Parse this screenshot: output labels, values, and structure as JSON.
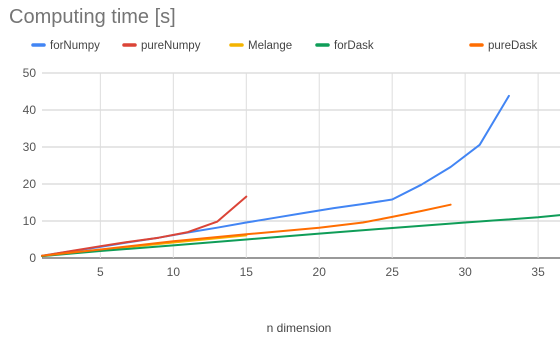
{
  "chart_data": {
    "type": "line",
    "title": "Computing time [s]",
    "xlabel": "n dimension",
    "ylabel": "",
    "xlim": [
      1,
      36.5
    ],
    "ylim": [
      0,
      50
    ],
    "x_ticks": [
      5,
      10,
      15,
      20,
      25,
      30,
      35
    ],
    "y_ticks": [
      0,
      10,
      20,
      30,
      40,
      50
    ],
    "grid": true,
    "legend_position": "top",
    "series": [
      {
        "name": "forNumpy",
        "color": "#4285f4",
        "points": [
          [
            1,
            0.6
          ],
          [
            3,
            1.8
          ],
          [
            5,
            3.0
          ],
          [
            7,
            4.3
          ],
          [
            9,
            5.5
          ],
          [
            11,
            6.9
          ],
          [
            13,
            8.2
          ],
          [
            15,
            9.6
          ],
          [
            17,
            10.9
          ],
          [
            19,
            12.2
          ],
          [
            21,
            13.5
          ],
          [
            23,
            14.6
          ],
          [
            25,
            15.8
          ],
          [
            27,
            19.8
          ],
          [
            29,
            24.6
          ],
          [
            31,
            30.6
          ],
          [
            33,
            43.8
          ]
        ]
      },
      {
        "name": "pureNumpy",
        "color": "#db4437",
        "points": [
          [
            1,
            0.6
          ],
          [
            3,
            1.9
          ],
          [
            5,
            3.2
          ],
          [
            7,
            4.4
          ],
          [
            9,
            5.5
          ],
          [
            11,
            7.0
          ],
          [
            13,
            9.8
          ],
          [
            15,
            16.6
          ]
        ]
      },
      {
        "name": "Melange",
        "color": "#f4b400",
        "points": [
          [
            1,
            0.5
          ],
          [
            5,
            2.2
          ],
          [
            10,
            4.2
          ],
          [
            15,
            6.1
          ]
        ]
      },
      {
        "name": "forDask",
        "color": "#0f9d58",
        "points": [
          [
            1,
            0.5
          ],
          [
            5,
            1.9
          ],
          [
            10,
            3.4
          ],
          [
            15,
            5.0
          ],
          [
            20,
            6.6
          ],
          [
            25,
            8.1
          ],
          [
            30,
            9.6
          ],
          [
            35,
            11.0
          ],
          [
            36.5,
            11.6
          ]
        ]
      },
      {
        "name": "pureDask",
        "color": "#ff6d01",
        "points": [
          [
            1,
            0.6
          ],
          [
            5,
            2.3
          ],
          [
            10,
            4.5
          ],
          [
            15,
            6.4
          ],
          [
            20,
            8.2
          ],
          [
            23,
            9.6
          ],
          [
            25,
            11.1
          ],
          [
            27,
            12.7
          ],
          [
            29,
            14.4
          ]
        ]
      }
    ]
  }
}
